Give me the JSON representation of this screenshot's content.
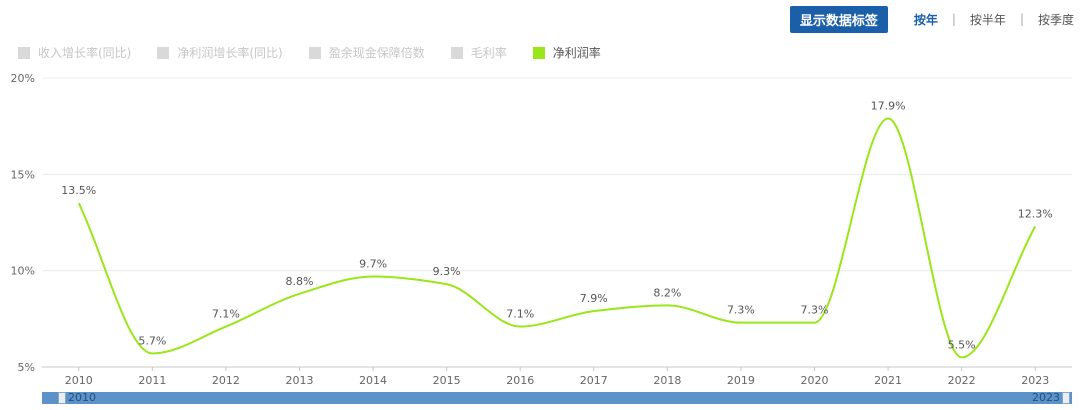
{
  "toolbar": {
    "show_labels_button": "显示数据标签",
    "periods": [
      {
        "label": "按年",
        "active": true
      },
      {
        "label": "按半年",
        "active": false
      },
      {
        "label": "按季度",
        "active": false
      }
    ]
  },
  "legend": [
    {
      "label": "收入增长率(同比)",
      "color": "#d9d9d9",
      "active": false
    },
    {
      "label": "净利润增长率(同比)",
      "color": "#d9d9d9",
      "active": false
    },
    {
      "label": "盈余现金保障倍数",
      "color": "#d9d9d9",
      "active": false
    },
    {
      "label": "毛利率",
      "color": "#d9d9d9",
      "active": false
    },
    {
      "label": "净利润率",
      "color": "#9ae619",
      "active": true
    }
  ],
  "chart_data": {
    "type": "line",
    "categories": [
      "2010",
      "2011",
      "2012",
      "2013",
      "2014",
      "2015",
      "2016",
      "2017",
      "2018",
      "2019",
      "2020",
      "2021",
      "2022",
      "2023"
    ],
    "series": [
      {
        "name": "净利润率",
        "color": "#9ae619",
        "values": [
          13.5,
          5.7,
          7.1,
          8.8,
          9.7,
          9.3,
          7.1,
          7.9,
          8.2,
          7.3,
          7.3,
          17.9,
          5.5,
          12.3
        ],
        "labels": [
          "13.5%",
          "5.7%",
          "7.1%",
          "8.8%",
          "9.7%",
          "9.3%",
          "7.1%",
          "7.9%",
          "8.2%",
          "7.3%",
          "7.3%",
          "17.9%",
          "5.5%",
          "12.3%"
        ]
      }
    ],
    "ylim": [
      5,
      20
    ],
    "yticks": [
      5,
      10,
      15,
      20
    ],
    "ytick_labels": [
      "5%",
      "10%",
      "15%",
      "20%"
    ],
    "grid": true,
    "legend_position": "top-left"
  },
  "slider": {
    "start_label": "2010",
    "end_label": "2023"
  }
}
